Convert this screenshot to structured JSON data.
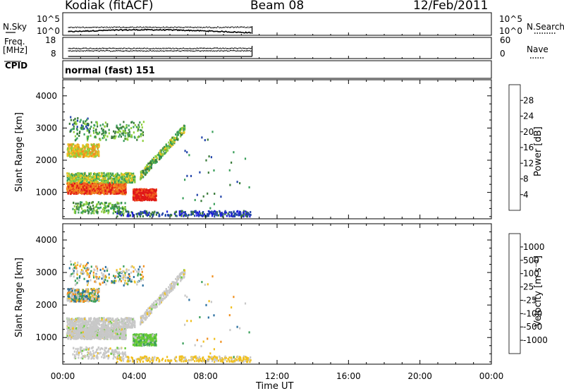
{
  "header": {
    "station": "Kodiak (fitACF)",
    "beam": "Beam 08",
    "date": "12/Feb/2011"
  },
  "noise_panel": {
    "left_label": "N.Sky",
    "right_label": "N.Search",
    "left_ticks": [
      "10^5",
      "10^0"
    ],
    "right_ticks": [
      "10^5",
      "10^0"
    ]
  },
  "freq_panel": {
    "left_label_1": "Freq.",
    "left_label_2": "[MHz]",
    "left_ticks": [
      "18",
      "8"
    ],
    "right_label": "Nave",
    "right_ticks": [
      "60",
      "0"
    ]
  },
  "cpid_panel": {
    "label": "CPID",
    "value": "normal (fast) 151"
  },
  "x_axis": {
    "label": "Time UT",
    "ticks": [
      "00:00",
      "04:00",
      "08:00",
      "12:00",
      "16:00",
      "20:00",
      "00:00"
    ]
  },
  "colors": {
    "power": [
      "#1f1fd8",
      "#2244aa",
      "#3a7b3a",
      "#3a9f5a",
      "#8fcf3f",
      "#f0c020",
      "#f09020",
      "#f06020",
      "#e01818"
    ],
    "velocity": [
      "#e01818",
      "#f05020",
      "#f09020",
      "#f0c020",
      "#c8c8c8",
      "#66cc33",
      "#3a9f5a",
      "#2a6f9f",
      "#1a1ad0"
    ]
  },
  "chart_data": [
    {
      "type": "heatmap",
      "title": "Power",
      "xlabel": "",
      "ylabel": "Slant Range [km]",
      "y_ticks": [
        "1000",
        "2000",
        "3000",
        "4000"
      ],
      "ylim": [
        180,
        4500
      ],
      "xlim": [
        0,
        24
      ],
      "colorbar": {
        "label": "Power [dB]",
        "ticks": [
          "4",
          "8",
          "12",
          "16",
          "20",
          "24",
          "28"
        ],
        "range": [
          0,
          30
        ]
      },
      "data_extent_hours": [
        0.3,
        10.6
      ]
    },
    {
      "type": "heatmap",
      "title": "Velocity",
      "xlabel": "Time UT",
      "ylabel": "Slant Range [km]",
      "y_ticks": [
        "1000",
        "2000",
        "3000",
        "4000"
      ],
      "ylim": [
        180,
        4500
      ],
      "xlim": [
        0,
        24
      ],
      "colorbar": {
        "label": "Velocity [m s⁻¹]",
        "ticks": [
          "1000",
          "500",
          "100",
          "25",
          "-25",
          "-100",
          "-500",
          "-1000"
        ]
      },
      "data_extent_hours": [
        0.3,
        10.6
      ]
    }
  ]
}
